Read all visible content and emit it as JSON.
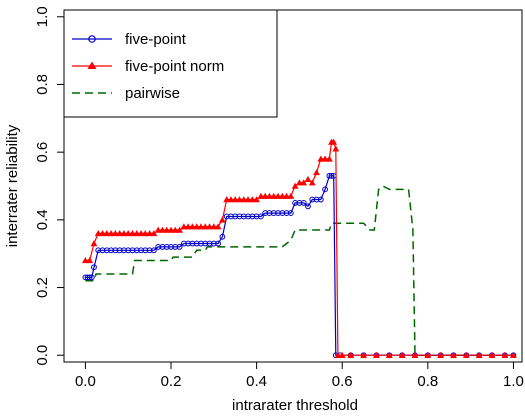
{
  "chart_data": {
    "type": "line",
    "title": "",
    "xlabel": "intrarater threshold",
    "ylabel": "interrater reliability",
    "xlim": [
      -0.05,
      1.02
    ],
    "ylim": [
      -0.02,
      1.02
    ],
    "xticks": [
      0.0,
      0.2,
      0.4,
      0.6,
      0.8,
      1.0
    ],
    "xtick_labels": [
      "0.0",
      "0.2",
      "0.4",
      "0.6",
      "0.8",
      "1.0"
    ],
    "yticks": [
      0.0,
      0.2,
      0.4,
      0.6,
      0.8,
      1.0
    ],
    "ytick_labels": [
      "0.0",
      "0.2",
      "0.4",
      "0.6",
      "0.8",
      "1.0"
    ],
    "grid": false,
    "legend": {
      "position": "top-left",
      "frame": true
    },
    "series": [
      {
        "name": "five-point",
        "color": "#0000cc",
        "line": "solid",
        "marker": "open-circle",
        "points": [
          [
            0.0,
            0.23
          ],
          [
            0.005,
            0.23
          ],
          [
            0.01,
            0.23
          ],
          [
            0.015,
            0.23
          ],
          [
            0.02,
            0.26
          ],
          [
            0.03,
            0.31
          ],
          [
            0.04,
            0.31
          ],
          [
            0.05,
            0.31
          ],
          [
            0.06,
            0.31
          ],
          [
            0.07,
            0.31
          ],
          [
            0.08,
            0.31
          ],
          [
            0.09,
            0.31
          ],
          [
            0.1,
            0.31
          ],
          [
            0.11,
            0.31
          ],
          [
            0.12,
            0.31
          ],
          [
            0.13,
            0.31
          ],
          [
            0.14,
            0.31
          ],
          [
            0.15,
            0.31
          ],
          [
            0.16,
            0.31
          ],
          [
            0.17,
            0.32
          ],
          [
            0.18,
            0.32
          ],
          [
            0.19,
            0.32
          ],
          [
            0.2,
            0.32
          ],
          [
            0.21,
            0.32
          ],
          [
            0.22,
            0.32
          ],
          [
            0.23,
            0.33
          ],
          [
            0.24,
            0.33
          ],
          [
            0.25,
            0.33
          ],
          [
            0.26,
            0.33
          ],
          [
            0.27,
            0.33
          ],
          [
            0.28,
            0.33
          ],
          [
            0.29,
            0.33
          ],
          [
            0.3,
            0.33
          ],
          [
            0.31,
            0.33
          ],
          [
            0.32,
            0.35
          ],
          [
            0.33,
            0.41
          ],
          [
            0.34,
            0.41
          ],
          [
            0.35,
            0.41
          ],
          [
            0.36,
            0.41
          ],
          [
            0.37,
            0.41
          ],
          [
            0.38,
            0.41
          ],
          [
            0.39,
            0.41
          ],
          [
            0.4,
            0.41
          ],
          [
            0.41,
            0.41
          ],
          [
            0.42,
            0.42
          ],
          [
            0.43,
            0.42
          ],
          [
            0.44,
            0.42
          ],
          [
            0.45,
            0.42
          ],
          [
            0.46,
            0.42
          ],
          [
            0.47,
            0.42
          ],
          [
            0.48,
            0.42
          ],
          [
            0.49,
            0.45
          ],
          [
            0.5,
            0.45
          ],
          [
            0.51,
            0.45
          ],
          [
            0.52,
            0.44
          ],
          [
            0.53,
            0.46
          ],
          [
            0.54,
            0.46
          ],
          [
            0.55,
            0.46
          ],
          [
            0.56,
            0.49
          ],
          [
            0.57,
            0.53
          ],
          [
            0.575,
            0.53
          ],
          [
            0.58,
            0.53
          ],
          [
            0.585,
            0.0
          ],
          [
            0.595,
            0.0
          ],
          [
            0.62,
            0.0
          ],
          [
            0.65,
            0.0
          ],
          [
            0.68,
            0.0
          ],
          [
            0.71,
            0.0
          ],
          [
            0.74,
            0.0
          ],
          [
            0.77,
            0.0
          ],
          [
            0.8,
            0.0
          ],
          [
            0.83,
            0.0
          ],
          [
            0.86,
            0.0
          ],
          [
            0.89,
            0.0
          ],
          [
            0.92,
            0.0
          ],
          [
            0.95,
            0.0
          ],
          [
            0.98,
            0.0
          ],
          [
            1.0,
            0.0
          ]
        ]
      },
      {
        "name": "five-point norm",
        "color": "#ff0000",
        "line": "solid",
        "marker": "filled-triangle",
        "points": [
          [
            0.0,
            0.28
          ],
          [
            0.01,
            0.28
          ],
          [
            0.02,
            0.33
          ],
          [
            0.03,
            0.36
          ],
          [
            0.04,
            0.36
          ],
          [
            0.05,
            0.36
          ],
          [
            0.06,
            0.36
          ],
          [
            0.07,
            0.36
          ],
          [
            0.08,
            0.36
          ],
          [
            0.09,
            0.36
          ],
          [
            0.1,
            0.36
          ],
          [
            0.11,
            0.36
          ],
          [
            0.12,
            0.36
          ],
          [
            0.13,
            0.36
          ],
          [
            0.14,
            0.36
          ],
          [
            0.15,
            0.36
          ],
          [
            0.16,
            0.36
          ],
          [
            0.17,
            0.37
          ],
          [
            0.18,
            0.37
          ],
          [
            0.19,
            0.37
          ],
          [
            0.2,
            0.37
          ],
          [
            0.21,
            0.37
          ],
          [
            0.22,
            0.37
          ],
          [
            0.23,
            0.38
          ],
          [
            0.24,
            0.38
          ],
          [
            0.25,
            0.38
          ],
          [
            0.26,
            0.38
          ],
          [
            0.27,
            0.38
          ],
          [
            0.28,
            0.38
          ],
          [
            0.29,
            0.38
          ],
          [
            0.3,
            0.38
          ],
          [
            0.31,
            0.38
          ],
          [
            0.32,
            0.4
          ],
          [
            0.33,
            0.46
          ],
          [
            0.34,
            0.46
          ],
          [
            0.35,
            0.46
          ],
          [
            0.36,
            0.46
          ],
          [
            0.37,
            0.46
          ],
          [
            0.38,
            0.46
          ],
          [
            0.39,
            0.46
          ],
          [
            0.4,
            0.46
          ],
          [
            0.41,
            0.47
          ],
          [
            0.42,
            0.47
          ],
          [
            0.43,
            0.47
          ],
          [
            0.44,
            0.47
          ],
          [
            0.45,
            0.47
          ],
          [
            0.46,
            0.47
          ],
          [
            0.47,
            0.47
          ],
          [
            0.48,
            0.47
          ],
          [
            0.49,
            0.5
          ],
          [
            0.5,
            0.51
          ],
          [
            0.51,
            0.51
          ],
          [
            0.52,
            0.52
          ],
          [
            0.53,
            0.51
          ],
          [
            0.54,
            0.54
          ],
          [
            0.55,
            0.58
          ],
          [
            0.56,
            0.58
          ],
          [
            0.57,
            0.58
          ],
          [
            0.575,
            0.63
          ],
          [
            0.58,
            0.63
          ],
          [
            0.585,
            0.61
          ],
          [
            0.59,
            0.0
          ],
          [
            0.6,
            0.0
          ],
          [
            0.62,
            0.0
          ],
          [
            0.65,
            0.0
          ],
          [
            0.68,
            0.0
          ],
          [
            0.71,
            0.0
          ],
          [
            0.74,
            0.0
          ],
          [
            0.77,
            0.0
          ],
          [
            0.8,
            0.0
          ],
          [
            0.83,
            0.0
          ],
          [
            0.86,
            0.0
          ],
          [
            0.89,
            0.0
          ],
          [
            0.92,
            0.0
          ],
          [
            0.95,
            0.0
          ],
          [
            0.98,
            0.0
          ],
          [
            1.0,
            0.0
          ]
        ]
      },
      {
        "name": "pairwise",
        "color": "#006600",
        "line": "dashed",
        "marker": "none",
        "points": [
          [
            0.0,
            0.22
          ],
          [
            0.02,
            0.22
          ],
          [
            0.025,
            0.24
          ],
          [
            0.11,
            0.24
          ],
          [
            0.115,
            0.28
          ],
          [
            0.2,
            0.28
          ],
          [
            0.205,
            0.29
          ],
          [
            0.25,
            0.29
          ],
          [
            0.26,
            0.31
          ],
          [
            0.28,
            0.31
          ],
          [
            0.285,
            0.32
          ],
          [
            0.46,
            0.32
          ],
          [
            0.47,
            0.33
          ],
          [
            0.48,
            0.34
          ],
          [
            0.49,
            0.37
          ],
          [
            0.57,
            0.37
          ],
          [
            0.575,
            0.39
          ],
          [
            0.65,
            0.39
          ],
          [
            0.665,
            0.37
          ],
          [
            0.675,
            0.37
          ],
          [
            0.685,
            0.49
          ],
          [
            0.695,
            0.5
          ],
          [
            0.71,
            0.49
          ],
          [
            0.755,
            0.49
          ],
          [
            0.765,
            0.37
          ],
          [
            0.77,
            0.0
          ],
          [
            0.8,
            0.0
          ],
          [
            1.0,
            0.0
          ]
        ]
      }
    ]
  }
}
